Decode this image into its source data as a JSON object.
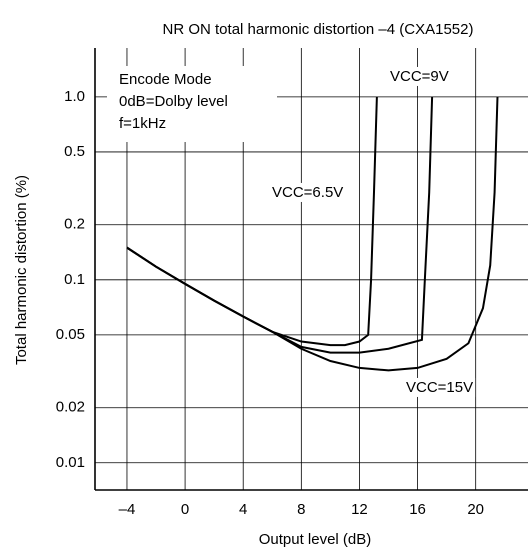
{
  "chart_data": {
    "type": "line",
    "title": "NR ON total harmonic distortion –4 (CXA1552)",
    "x_label": "Output level (dB)",
    "y_label": "Total harmonic distortion (%)",
    "annotations": [
      "Encode Mode",
      "0dB=Dolby level",
      "f=1kHz"
    ],
    "log_y": true,
    "grid": true,
    "xlim": [
      -6.2,
      23.6
    ],
    "ylim": [
      0.0071,
      1.85
    ],
    "xticks": [
      {
        "value": -4,
        "label": "–4"
      },
      0,
      4,
      8,
      12,
      16,
      20
    ],
    "yticks": [
      {
        "value": 1,
        "label": "1.0"
      },
      0.5,
      0.2,
      0.1,
      0.05,
      0.02,
      0.01
    ],
    "series": [
      {
        "name": "VCC=6.5V",
        "color": "#000000",
        "x": [
          -4,
          -2,
          0,
          2,
          4,
          6,
          8,
          10,
          11,
          12,
          12.6,
          12.8,
          13.0,
          13.2
        ],
        "values": [
          0.15,
          0.118,
          0.095,
          0.077,
          0.063,
          0.052,
          0.046,
          0.044,
          0.044,
          0.046,
          0.05,
          0.1,
          0.3,
          1.0
        ]
      },
      {
        "name": "VCC=9V",
        "color": "#000000",
        "x": [
          -4,
          -2,
          0,
          2,
          4,
          6,
          8,
          10,
          12,
          14,
          16.3,
          16.5,
          16.8,
          17.0
        ],
        "values": [
          0.15,
          0.118,
          0.095,
          0.077,
          0.063,
          0.052,
          0.043,
          0.04,
          0.04,
          0.042,
          0.047,
          0.1,
          0.3,
          1.0
        ]
      },
      {
        "name": "VCC=15V",
        "color": "#000000",
        "x": [
          -4,
          -2,
          0,
          2,
          4,
          6,
          8,
          10,
          12,
          14,
          16,
          18,
          19.5,
          20.5,
          21,
          21.3,
          21.5
        ],
        "values": [
          0.15,
          0.118,
          0.095,
          0.077,
          0.063,
          0.052,
          0.042,
          0.036,
          0.033,
          0.032,
          0.033,
          0.037,
          0.045,
          0.07,
          0.12,
          0.3,
          1.0
        ]
      }
    ]
  }
}
